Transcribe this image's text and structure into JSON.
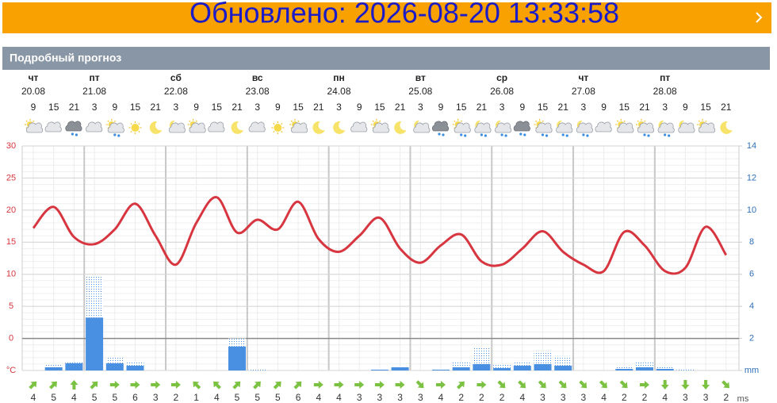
{
  "header": {
    "updated": "Обновлено: 2026-08-20 13:33:58"
  },
  "section_title": "Подробный прогноз",
  "chart_data": {
    "type": "line",
    "weekdays": [
      "чт",
      null,
      null,
      "пт",
      null,
      null,
      null,
      "сб",
      null,
      null,
      null,
      "вс",
      null,
      null,
      null,
      "пн",
      null,
      null,
      null,
      "вт",
      null,
      null,
      null,
      "ср",
      null,
      null,
      null,
      "чт",
      null,
      null,
      null,
      "пт",
      null,
      null,
      null
    ],
    "dates": [
      "20.08",
      null,
      null,
      "21.08",
      null,
      null,
      null,
      "22.08",
      null,
      null,
      null,
      "23.08",
      null,
      null,
      null,
      "24.08",
      null,
      null,
      null,
      "25.08",
      null,
      null,
      null,
      "26.08",
      null,
      null,
      null,
      "27.08",
      null,
      null,
      null,
      "28.08",
      null,
      null,
      null
    ],
    "hours": [
      9,
      15,
      21,
      3,
      9,
      15,
      21,
      3,
      9,
      15,
      21,
      3,
      9,
      15,
      21,
      3,
      9,
      15,
      21,
      3,
      9,
      15,
      21,
      3,
      9,
      15,
      21,
      3,
      9,
      15,
      21,
      3,
      9,
      15,
      21
    ],
    "temperature": {
      "color": "#d7353f",
      "values": [
        17.2,
        20.5,
        15.8,
        14.7,
        17,
        21,
        16,
        11.5,
        18,
        22,
        16.5,
        18.5,
        17,
        21.3,
        15.5,
        13.5,
        16,
        18.8,
        14,
        11.8,
        14.5,
        16.2,
        12,
        11.5,
        14,
        16.7,
        13.5,
        11.5,
        10.5,
        16.6,
        14.5,
        10.5,
        11,
        17.4,
        13
      ]
    },
    "precipitation": {
      "color": "#4a90e2",
      "values": [
        null,
        0.2,
        0.5,
        3.3,
        0.45,
        0.3,
        null,
        null,
        null,
        null,
        1.5,
        null,
        null,
        null,
        null,
        null,
        null,
        0.05,
        0.2,
        null,
        0.1,
        0.2,
        0.4,
        0.15,
        0.3,
        0.4,
        0.3,
        null,
        null,
        0.1,
        0.2,
        0.1,
        0.05,
        null,
        null
      ],
      "max_values": [
        null,
        0.4,
        0.5,
        5.9,
        0.8,
        0.6,
        null,
        null,
        null,
        null,
        2.0,
        0.05,
        null,
        null,
        null,
        null,
        null,
        0.1,
        0.25,
        null,
        0.1,
        0.5,
        1.4,
        0.4,
        0.6,
        1.2,
        0.9,
        null,
        null,
        0.3,
        0.5,
        0.2,
        0.05,
        null,
        null
      ]
    },
    "wind": {
      "color": "#7cc242",
      "unit": "ms",
      "speeds": [
        4,
        5,
        4,
        5,
        5,
        6,
        3,
        2,
        1,
        4,
        5,
        5,
        5,
        6,
        4,
        4,
        3,
        3,
        3,
        3,
        4,
        2,
        2,
        2,
        4,
        3,
        3,
        3,
        4,
        2,
        2,
        4,
        3,
        3,
        2
      ],
      "directions": [
        45,
        45,
        0,
        45,
        90,
        90,
        90,
        90,
        315,
        315,
        45,
        45,
        45,
        45,
        90,
        90,
        90,
        90,
        90,
        135,
        90,
        45,
        90,
        135,
        135,
        135,
        135,
        135,
        135,
        135,
        90,
        180,
        180,
        180,
        135
      ]
    },
    "ylim": [
      -5,
      30
    ],
    "yticks": [
      30,
      25,
      20,
      15,
      10,
      5,
      0,
      {
        "value": -5,
        "label": "°C"
      }
    ],
    "y2lim": [
      0,
      14
    ],
    "y2ticks": [
      14,
      12,
      10,
      8,
      6,
      4,
      2,
      {
        "value": 0,
        "label": "mm"
      }
    ],
    "grid": true
  }
}
